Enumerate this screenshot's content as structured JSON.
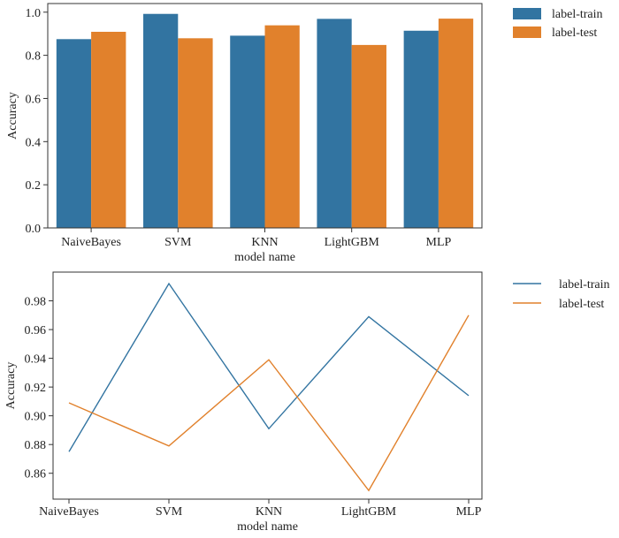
{
  "chart_data": [
    {
      "type": "bar",
      "title": "",
      "xlabel": "model  name",
      "ylabel": "Accuracy",
      "categories": [
        "NaiveBayes",
        "SVM",
        "KNN",
        "LightGBM",
        "MLP"
      ],
      "series": [
        {
          "name": "label-train",
          "values": [
            0.875,
            0.992,
            0.891,
            0.969,
            0.914
          ],
          "color": "#3274a1"
        },
        {
          "name": "label-test",
          "values": [
            0.909,
            0.879,
            0.939,
            0.848,
            0.97
          ],
          "color": "#e1812c"
        }
      ],
      "ylim": [
        0,
        1.04
      ],
      "yticks": [
        "0.0",
        "0.2",
        "0.4",
        "0.6",
        "0.8",
        "1.0"
      ],
      "legend": "outside-top-right",
      "grid": false
    },
    {
      "type": "line",
      "title": "",
      "xlabel": "model  name",
      "ylabel": "Accuracy",
      "categories": [
        "NaiveBayes",
        "SVM",
        "KNN",
        "LightGBM",
        "MLP"
      ],
      "series": [
        {
          "name": "label-train",
          "values": [
            0.875,
            0.992,
            0.891,
            0.969,
            0.914
          ],
          "color": "#3274a1"
        },
        {
          "name": "label-test",
          "values": [
            0.909,
            0.879,
            0.939,
            0.848,
            0.97
          ],
          "color": "#e1812c"
        }
      ],
      "ylim": [
        0.842,
        1.0
      ],
      "yticks": [
        "0.86",
        "0.88",
        "0.90",
        "0.92",
        "0.94",
        "0.96",
        "0.98"
      ],
      "legend": "outside-top-right",
      "grid": false
    }
  ]
}
